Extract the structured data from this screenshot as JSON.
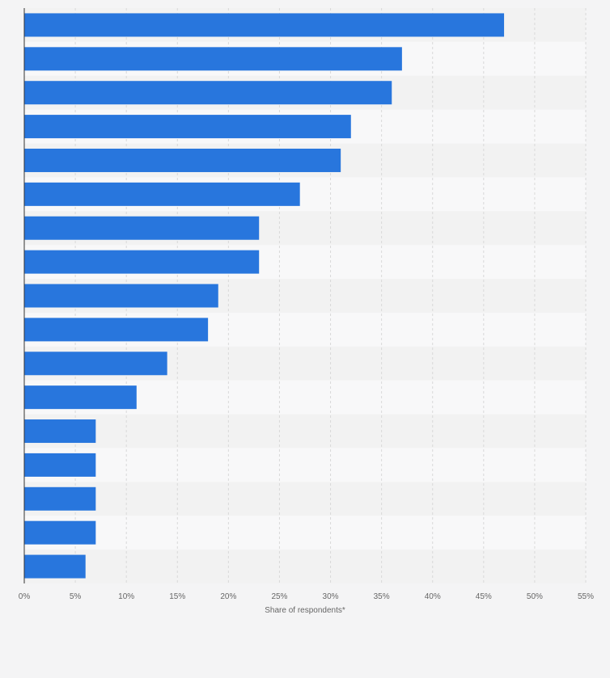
{
  "chart_data": {
    "type": "bar",
    "orientation": "horizontal",
    "categories": [
      "",
      "",
      "",
      "",
      "",
      "",
      "",
      "",
      "",
      "",
      "",
      "",
      "",
      "",
      "",
      "",
      ""
    ],
    "values": [
      47,
      37,
      36,
      32,
      31,
      27,
      23,
      23,
      19,
      18,
      14,
      11,
      7,
      7,
      7,
      7,
      6
    ],
    "xlabel": "Share of respondents*",
    "xlim": [
      0,
      55
    ],
    "x_ticks": [
      "0%",
      "5%",
      "10%",
      "15%",
      "20%",
      "25%",
      "30%",
      "35%",
      "40%",
      "45%",
      "50%",
      "55%"
    ],
    "grid": true,
    "colors": {
      "bar": "#2876dd",
      "band_dark": "#f2f2f2",
      "band_light": "#f8f8f9",
      "grid": "#d9d9d9",
      "axis": "#333333"
    }
  }
}
